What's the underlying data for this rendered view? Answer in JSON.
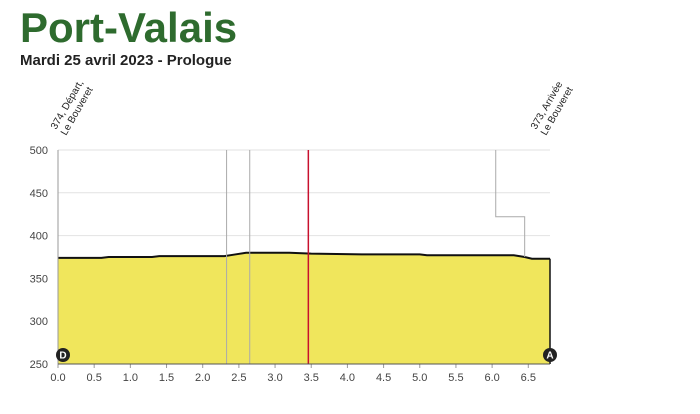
{
  "chart_data": {
    "type": "area",
    "title": "Port-Valais",
    "subtitle": "Mardi 25 avril 2023 - Prologue",
    "x": [
      0,
      0.6,
      0.7,
      1.3,
      1.4,
      2.3,
      2.45,
      2.6,
      3.2,
      3.5,
      4.2,
      5.0,
      5.1,
      6.3,
      6.45,
      6.55,
      6.8
    ],
    "series": [
      {
        "color": "#f0e65c",
        "values": [
          374,
          374,
          375,
          375,
          376,
          376,
          378,
          380,
          380,
          379,
          378,
          378,
          377,
          377,
          375,
          373,
          373
        ]
      }
    ],
    "reference_lines": [
      {
        "x": 2.33,
        "color": "#aaaaaa"
      },
      {
        "x": 2.65,
        "color": "#aaaaaa"
      },
      {
        "x": 3.46,
        "color": "#c8102e"
      }
    ],
    "step_line": {
      "x": [
        6.05,
        6.05,
        6.45,
        6.45
      ],
      "values": [
        500,
        422,
        422,
        375
      ],
      "color": "#aaaaaa"
    },
    "start": {
      "lines": [
        "374, Départ,",
        "Le Bouveret"
      ],
      "marker": "D"
    },
    "finish": {
      "lines": [
        "373, Arrivée",
        "Le Bouveret"
      ],
      "marker": "A"
    },
    "xlim": [
      0,
      6.8
    ],
    "ylim": [
      250,
      500
    ],
    "xticks": [
      {
        "value": 0,
        "label": "0.0"
      },
      0.5,
      {
        "value": 1,
        "label": "1.0"
      },
      1.5,
      {
        "value": 2,
        "label": "2.0"
      },
      2.5,
      {
        "value": 3,
        "label": "3.0"
      },
      3.5,
      {
        "value": 4,
        "label": "4.0"
      },
      4.5,
      {
        "value": 5,
        "label": "5.0"
      },
      5.5,
      {
        "value": 6,
        "label": "6.0"
      },
      6.5
    ],
    "yticks": [
      250,
      300,
      350,
      400,
      450,
      500
    ],
    "grid": true
  }
}
